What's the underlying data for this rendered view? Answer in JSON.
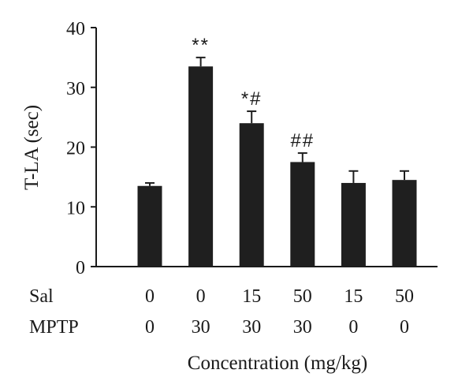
{
  "chart_data": {
    "type": "bar",
    "ylabel": "T-LA (sec)",
    "xlabel": "Concentration (mg/kg)",
    "ylim": [
      0,
      40
    ],
    "yticks": [
      "0",
      "10",
      "20",
      "30",
      "40"
    ],
    "row_labels": [
      "Sal",
      "MPTP"
    ],
    "sal": [
      "0",
      "0",
      "15",
      "50",
      "15",
      "50"
    ],
    "mptp": [
      "0",
      "30",
      "30",
      "30",
      "0",
      "0"
    ],
    "values": [
      13.5,
      33.5,
      24,
      17.5,
      14,
      14.5
    ],
    "errors": [
      0.5,
      1.5,
      2,
      1.5,
      2,
      1.5
    ],
    "annotations": [
      "",
      "**",
      "*#",
      "##",
      "",
      ""
    ],
    "colors": {
      "bar": "#1f1f1f",
      "axis": "#1a1a1a"
    },
    "grid": false
  }
}
